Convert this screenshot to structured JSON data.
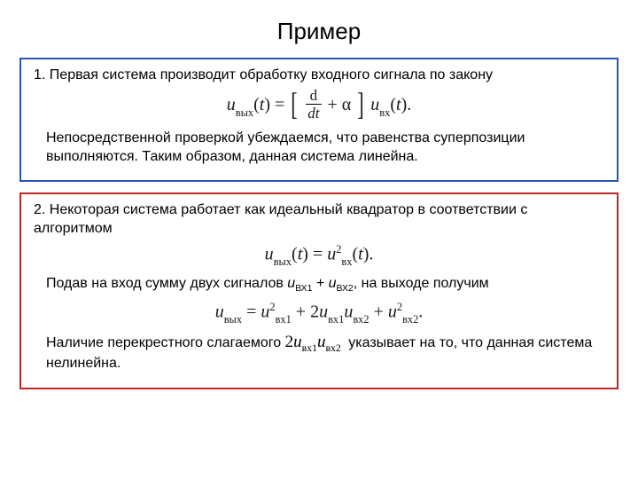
{
  "title": "Пример",
  "box1": {
    "line1": "1. Первая система производит обработку входного сигнала по закону",
    "formula": {
      "u": "u",
      "sub_out": "вых",
      "t": "t",
      "eq": "=",
      "d": "d",
      "dt": "dt",
      "plus_alpha": "+ α",
      "sub_in": "вх",
      "dot": "."
    },
    "line2": "Непосредственной проверкой убеждаемся, что равенства суперпозиции выполняются. Таким образом, данная система линейна."
  },
  "box2": {
    "line1": "  2. Некоторая система работает как идеальный квадратор в соответствии с алгоритмом",
    "formula1": {
      "u": "u",
      "sub_out": "вых",
      "t": "t",
      "eq": "=",
      "sub_in": "вх",
      "sq": "2",
      "dot": "."
    },
    "line2_before": "Подав на вход сумму двух сигналов ",
    "u_in": "u",
    "sub1": "ВХ1",
    "plus": " + ",
    "sub2": "ВХ2",
    "line2_after": ", на выходе получим",
    "formula2": {
      "u": "u",
      "sub_out": "вых",
      "eq": "=",
      "sub_in1": "вх1",
      "sub_in2": "вх2",
      "plus": "+",
      "two": "2",
      "sq": "2",
      "dot": "."
    },
    "line3_before": "Наличие перекрестного слагаемого ",
    "cross": {
      "two": "2",
      "u": "u",
      "sub1": "вх1",
      "sub2": "вх2"
    },
    "line3_after": " указывает на то, что данная система нелинейна."
  },
  "style": {
    "border_blue": "#2a54b5",
    "border_red": "#c02626",
    "text_color": "#000000",
    "title_fontsize": 26,
    "body_fontsize": 16,
    "formula_fontsize": 20,
    "font_family_body": "Arial",
    "font_family_math": "Times New Roman"
  }
}
